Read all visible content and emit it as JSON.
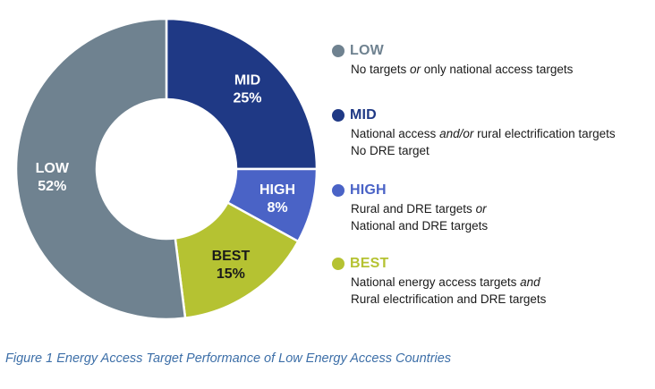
{
  "chart_data": {
    "type": "pie",
    "variant": "donut",
    "categories": [
      "LOW",
      "MID",
      "HIGH",
      "BEST"
    ],
    "values": [
      52,
      25,
      8,
      15
    ],
    "value_labels": [
      "52%",
      "25%",
      "8%",
      "15%"
    ],
    "slice_order_clockwise_from_top": [
      "MID",
      "HIGH",
      "BEST",
      "LOW"
    ],
    "colors": {
      "LOW": "#6f8290",
      "MID": "#1f3985",
      "HIGH": "#4a63c6",
      "BEST": "#b5c232"
    },
    "label_colors": {
      "LOW": "#ffffff",
      "MID": "#ffffff",
      "HIGH": "#ffffff",
      "BEST": "#1a1a1a"
    },
    "legend": [
      {
        "key": "LOW",
        "title": "LOW",
        "lines": [
          [
            {
              "text": "No targets ",
              "italic": false
            },
            {
              "text": "or",
              "italic": true
            },
            {
              "text": " only national access targets",
              "italic": false
            }
          ]
        ]
      },
      {
        "key": "MID",
        "title": "MID",
        "lines": [
          [
            {
              "text": "National access ",
              "italic": false
            },
            {
              "text": "and/or",
              "italic": true
            },
            {
              "text": " rural electrification targets",
              "italic": false
            }
          ],
          [
            {
              "text": "No DRE target",
              "italic": false
            }
          ]
        ]
      },
      {
        "key": "HIGH",
        "title": "HIGH",
        "lines": [
          [
            {
              "text": "Rural and DRE targets ",
              "italic": false
            },
            {
              "text": "or",
              "italic": true
            }
          ],
          [
            {
              "text": "National and DRE targets",
              "italic": false
            }
          ]
        ]
      },
      {
        "key": "BEST",
        "title": "BEST",
        "lines": [
          [
            {
              "text": "National energy access targets ",
              "italic": false
            },
            {
              "text": "and",
              "italic": true
            }
          ],
          [
            {
              "text": "Rural electrification and DRE targets",
              "italic": false
            }
          ]
        ]
      }
    ],
    "legend_position": "right",
    "caption": "Figure 1 Energy Access Target Performance of Low Energy Access Countries"
  }
}
